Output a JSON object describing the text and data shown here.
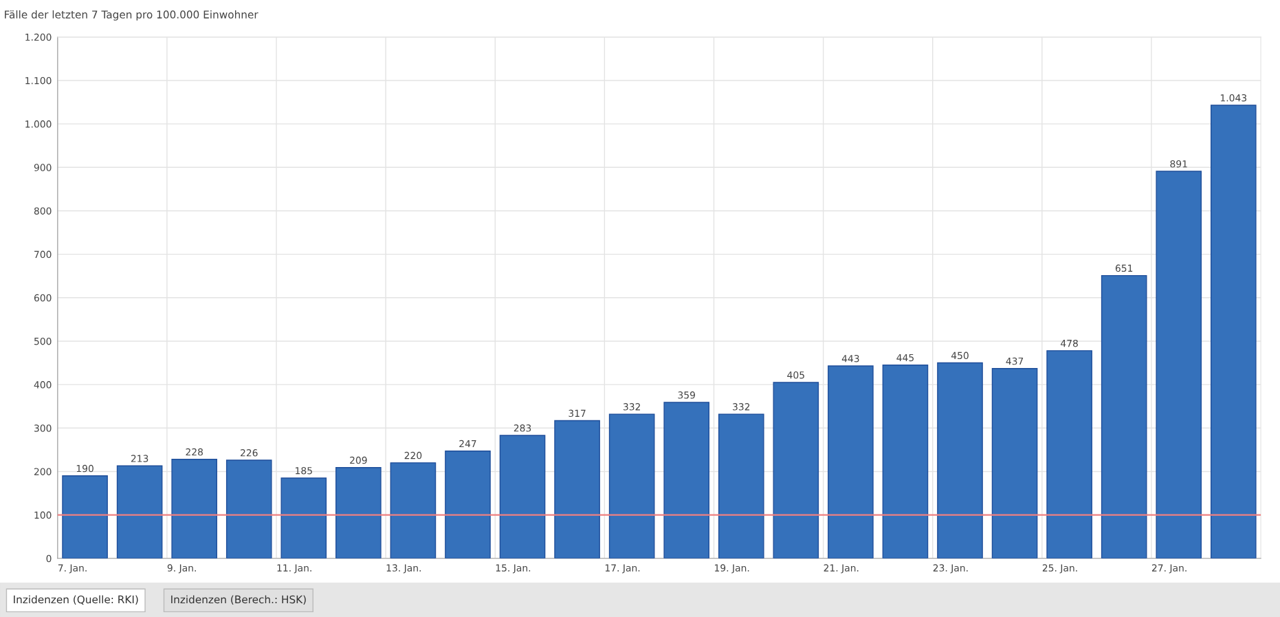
{
  "chart_data": {
    "type": "bar",
    "title": "Fälle der letzten 7 Tagen pro 100.000 Einwohner",
    "categories": [
      "7. Jan.",
      null,
      "9. Jan.",
      null,
      "11. Jan.",
      null,
      "13. Jan.",
      null,
      "15. Jan.",
      null,
      "17. Jan.",
      null,
      "19. Jan.",
      null,
      "21. Jan.",
      null,
      "23. Jan.",
      null,
      "25. Jan.",
      null,
      "27. Jan.",
      null
    ],
    "values": [
      190,
      213,
      228,
      226,
      185,
      209,
      220,
      247,
      283,
      317,
      332,
      359,
      332,
      405,
      443,
      445,
      450,
      437,
      478,
      651,
      891,
      1043
    ],
    "value_labels": [
      "190",
      "213",
      "228",
      "226",
      "185",
      "209",
      "220",
      "247",
      "283",
      "317",
      "332",
      "359",
      "332",
      "405",
      "443",
      "445",
      "450",
      "437",
      "478",
      "651",
      "891",
      "1.043"
    ],
    "color": "#3571bb",
    "ylim": [
      0,
      1200
    ],
    "yticks": [
      0,
      100,
      200,
      300,
      400,
      500,
      600,
      700,
      800,
      900,
      {
        "value": 1000,
        "label": "1.000"
      },
      {
        "value": 1100,
        "label": "1.100"
      },
      {
        "value": 1200,
        "label": "1.200"
      }
    ],
    "ref_lines": [
      {
        "axis": "y",
        "value": 100,
        "color": "#f08080"
      }
    ],
    "grid": true,
    "annotations": [
      "Inzidenzen (Quelle: RKI)",
      "Inzidenzen (Berech.: HSK)"
    ]
  }
}
